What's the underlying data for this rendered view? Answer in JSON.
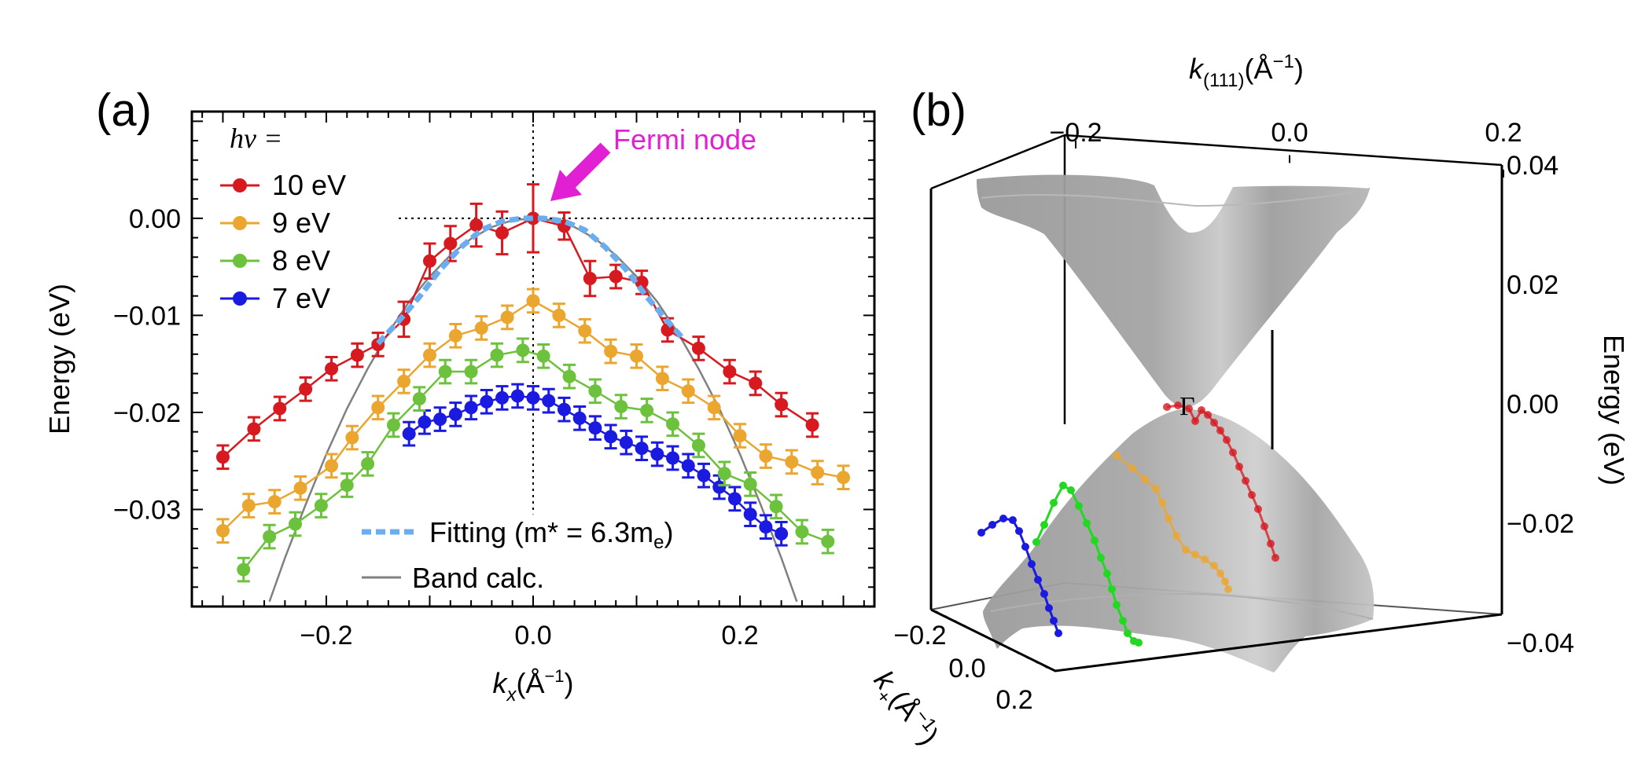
{
  "colors": {
    "red": "#d71920",
    "orange": "#eba62f",
    "green": "#6cc23c",
    "blue": "#1a1ae0",
    "fit": "#6aaef0",
    "band": "#808080",
    "magenta": "#e020d2"
  },
  "panel_a": {
    "label": "(a)",
    "legend_title": "hν =",
    "annotation": "Fermi node",
    "fit_legend": "Fitting (m* = 6.3m",
    "fit_legend_sub": "e",
    "fit_legend_end": ")",
    "band_legend": "Band calc."
  },
  "panel_b": {
    "label": "(b)",
    "gamma_label": "Γ",
    "top_axis_label": "k",
    "top_axis_sub": "(111)",
    "top_axis_unit": "(Å",
    "top_axis_sup": "−1",
    "top_axis_close": ")",
    "right_axis_label": "Energy (eV)",
    "depth_axis_label": "k",
    "depth_axis_sub": "+",
    "depth_axis_unit": "(Å",
    "depth_axis_sup": "−1",
    "depth_axis_close": ")",
    "top_ticks": [
      "−0.2",
      "0.0",
      "0.2"
    ],
    "right_ticks": [
      "0.04",
      "0.02",
      "0.00",
      "−0.02",
      "−0.04"
    ],
    "depth_ticks": [
      "−0.2",
      "0.0",
      "0.2"
    ]
  },
  "chart_data": [
    {
      "type": "line",
      "title": "",
      "xlabel": "k_x (Å−1)",
      "ylabel": "Energy (eV)",
      "xlim": [
        -0.33,
        0.33
      ],
      "ylim": [
        -0.04,
        0.011
      ],
      "x_ticks": [
        -0.2,
        0.0,
        0.2
      ],
      "x_tick_labels": [
        "−0.2",
        "0.0",
        "0.2"
      ],
      "y_ticks": [
        0.0,
        -0.01,
        -0.02,
        -0.03
      ],
      "y_tick_labels": [
        "0.00",
        "−0.01",
        "−0.02",
        "−0.03"
      ],
      "legend_position": "top-left",
      "series": [
        {
          "name": "10 eV",
          "color": "#d71920",
          "x": [
            -0.3,
            -0.27,
            -0.245,
            -0.22,
            -0.195,
            -0.17,
            -0.15,
            -0.125,
            -0.1,
            -0.08,
            -0.055,
            -0.03,
            0.0,
            0.03,
            0.055,
            0.08,
            0.105,
            0.13,
            0.16,
            0.19,
            0.215,
            0.24,
            0.27
          ],
          "y": [
            -0.0246,
            -0.0217,
            -0.0196,
            -0.0176,
            -0.0155,
            -0.0141,
            -0.013,
            -0.0104,
            -0.0044,
            -0.0026,
            -0.0007,
            -0.0015,
            0.0,
            -0.0008,
            -0.0062,
            -0.006,
            -0.0066,
            -0.0115,
            -0.0134,
            -0.0158,
            -0.017,
            -0.0192,
            -0.0213
          ],
          "err": [
            0.0012,
            0.0012,
            0.0012,
            0.0012,
            0.0012,
            0.0012,
            0.0012,
            0.0018,
            0.0018,
            0.0018,
            0.0022,
            0.0022,
            0.0035,
            0.0014,
            0.0018,
            0.0012,
            0.0012,
            0.0012,
            0.0012,
            0.0012,
            0.0012,
            0.0012,
            0.0012
          ]
        },
        {
          "name": "9 eV",
          "color": "#eba62f",
          "x": [
            -0.3,
            -0.275,
            -0.25,
            -0.225,
            -0.195,
            -0.175,
            -0.15,
            -0.125,
            -0.1,
            -0.075,
            -0.05,
            -0.025,
            0.0,
            0.025,
            0.05,
            0.075,
            0.1,
            0.125,
            0.15,
            0.175,
            0.2,
            0.225,
            0.25,
            0.275,
            0.3
          ],
          "y": [
            -0.0322,
            -0.0296,
            -0.0292,
            -0.0278,
            -0.0255,
            -0.0226,
            -0.0195,
            -0.0168,
            -0.0141,
            -0.0121,
            -0.0113,
            -0.0102,
            -0.0085,
            -0.01,
            -0.0116,
            -0.0137,
            -0.0142,
            -0.0165,
            -0.0178,
            -0.0195,
            -0.0224,
            -0.0245,
            -0.0251,
            -0.0262,
            -0.0267
          ],
          "err": [
            0.0012,
            0.0012,
            0.0012,
            0.0012,
            0.0012,
            0.0012,
            0.0012,
            0.0012,
            0.0012,
            0.0012,
            0.0012,
            0.0012,
            0.0012,
            0.0012,
            0.0012,
            0.0012,
            0.0012,
            0.0012,
            0.0012,
            0.0012,
            0.0012,
            0.0012,
            0.0012,
            0.0012,
            0.0012
          ]
        },
        {
          "name": "8 eV",
          "color": "#6cc23c",
          "x": [
            -0.28,
            -0.255,
            -0.23,
            -0.205,
            -0.18,
            -0.16,
            -0.135,
            -0.11,
            -0.085,
            -0.06,
            -0.035,
            -0.01,
            0.01,
            0.035,
            0.06,
            0.085,
            0.11,
            0.135,
            0.16,
            0.185,
            0.21,
            0.235,
            0.26,
            0.285
          ],
          "y": [
            -0.0362,
            -0.0328,
            -0.0315,
            -0.0296,
            -0.0275,
            -0.0253,
            -0.0213,
            -0.0186,
            -0.0158,
            -0.0158,
            -0.0141,
            -0.0136,
            -0.0142,
            -0.0163,
            -0.0178,
            -0.0194,
            -0.0198,
            -0.0212,
            -0.0234,
            -0.0263,
            -0.0274,
            -0.0297,
            -0.0323,
            -0.0333
          ],
          "err": [
            0.0012,
            0.0012,
            0.0012,
            0.0012,
            0.0012,
            0.0012,
            0.0012,
            0.0012,
            0.0012,
            0.0012,
            0.0012,
            0.0012,
            0.0012,
            0.0012,
            0.0012,
            0.0012,
            0.0012,
            0.0012,
            0.0012,
            0.0012,
            0.0012,
            0.0012,
            0.0012,
            0.0012
          ]
        },
        {
          "name": "7 eV",
          "color": "#1a1ae0",
          "x": [
            -0.12,
            -0.105,
            -0.09,
            -0.075,
            -0.06,
            -0.045,
            -0.03,
            -0.015,
            0.0,
            0.015,
            0.03,
            0.045,
            0.06,
            0.075,
            0.09,
            0.105,
            0.12,
            0.135,
            0.15,
            0.165,
            0.18,
            0.195,
            0.21,
            0.225,
            0.24
          ],
          "y": [
            -0.0222,
            -0.021,
            -0.0207,
            -0.0202,
            -0.0195,
            -0.0189,
            -0.0185,
            -0.0183,
            -0.0185,
            -0.0188,
            -0.0197,
            -0.0206,
            -0.0216,
            -0.0225,
            -0.0231,
            -0.0237,
            -0.0243,
            -0.0247,
            -0.0255,
            -0.0265,
            -0.0277,
            -0.0289,
            -0.0305,
            -0.0318,
            -0.0325
          ],
          "err": [
            0.0012,
            0.0012,
            0.0012,
            0.0012,
            0.0012,
            0.0012,
            0.0012,
            0.0012,
            0.0012,
            0.0012,
            0.0012,
            0.0012,
            0.0012,
            0.0012,
            0.0012,
            0.0012,
            0.0012,
            0.0012,
            0.0012,
            0.0012,
            0.0012,
            0.0012,
            0.0012,
            0.0012,
            0.0012
          ]
        },
        {
          "name": "Fitting (m* = 6.3me)",
          "color": "#6aaef0",
          "style": "dashed",
          "x": [
            -0.15,
            -0.13,
            -0.11,
            -0.09,
            -0.07,
            -0.05,
            -0.03,
            -0.01,
            0.0,
            0.01,
            0.03,
            0.05,
            0.07,
            0.09,
            0.11,
            0.13,
            0.145
          ],
          "y": [
            -0.0129,
            -0.0106,
            -0.0081,
            -0.0053,
            -0.003,
            -0.0012,
            -0.0003,
            0.0,
            0.0,
            0.0,
            -0.0003,
            -0.0012,
            -0.003,
            -0.0053,
            -0.0081,
            -0.0106,
            -0.0124
          ]
        },
        {
          "name": "Band calc.",
          "color": "#808080",
          "style": "solid",
          "x": [
            -0.255,
            -0.24,
            -0.22,
            -0.2,
            -0.18,
            -0.16,
            -0.14,
            -0.12,
            -0.1,
            -0.08,
            -0.06,
            -0.04,
            -0.02,
            0.0,
            0.02,
            0.04,
            0.06,
            0.08,
            0.1,
            0.12,
            0.14,
            0.16,
            0.18,
            0.2,
            0.22,
            0.24,
            0.255
          ],
          "y": [
            -0.0395,
            -0.035,
            -0.0295,
            -0.0243,
            -0.0196,
            -0.0155,
            -0.0118,
            -0.0086,
            -0.006,
            -0.0038,
            -0.0021,
            -0.0009,
            -0.0002,
            0.0,
            -0.0002,
            -0.0009,
            -0.0021,
            -0.0038,
            -0.006,
            -0.0086,
            -0.0118,
            -0.0155,
            -0.0196,
            -0.0243,
            -0.0295,
            -0.035,
            -0.0395
          ]
        }
      ]
    },
    {
      "type": "surface3d",
      "title": "",
      "xlabel": "k(111) (Å−1)",
      "ylabel": "k+ (Å−1)",
      "zlabel": "Energy (eV)",
      "xlim": [
        -0.3,
        0.3
      ],
      "ylim": [
        -0.25,
        0.25
      ],
      "zlim": [
        -0.04,
        0.04
      ],
      "x_ticks": [
        -0.2,
        0.0,
        0.2
      ],
      "y_ticks": [
        -0.2,
        0.0,
        0.2
      ],
      "z_ticks": [
        0.04,
        0.02,
        0.0,
        -0.02,
        -0.04
      ],
      "series": [
        {
          "name": "10 eV",
          "color": "#d71920"
        },
        {
          "name": "9 eV",
          "color": "#eba62f"
        },
        {
          "name": "8 eV",
          "color": "#22d822"
        },
        {
          "name": "7 eV",
          "color": "#1a1ae0"
        }
      ]
    }
  ]
}
